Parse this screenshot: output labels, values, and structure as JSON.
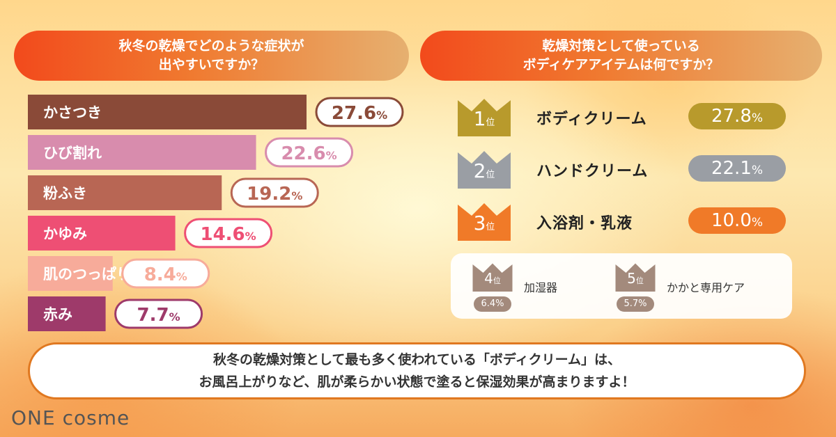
{
  "left_question": "秋冬の乾燥でどのような症状が\n出やすいですか？",
  "right_question": "乾燥対策として使っている\nボディケアアイテムは何ですか？",
  "chart_data": {
    "type": "bar",
    "orientation": "horizontal",
    "title": "秋冬の乾燥でどのような症状が\n出やすいですか？",
    "categories": [
      "かさつき",
      "ひび割れ",
      "粉ふき",
      "かゆみ",
      "肌のつっぱり",
      "赤み"
    ],
    "values": [
      27.6,
      22.6,
      19.2,
      14.6,
      8.4,
      7.7
    ],
    "value_labels": [
      "27.6",
      "22.6",
      "19.2",
      "14.6",
      "8.4",
      "7.7"
    ],
    "unit": "%",
    "colors": [
      "#8a4a38",
      "#d88cad",
      "#b86654",
      "#ee4f74",
      "#f7ab9a",
      "#9e3a6a"
    ],
    "xlim": [
      0,
      27.6
    ],
    "grid": false,
    "legend": "none"
  },
  "ranking": {
    "rank_suffix": "位",
    "top": [
      {
        "rank": "1",
        "label": "ボディクリーム",
        "value": "27.8",
        "unit": "%",
        "color": "#b89a2c"
      },
      {
        "rank": "2",
        "label": "ハンドクリーム",
        "value": "22.1",
        "unit": "%",
        "color": "#9a9ea4"
      },
      {
        "rank": "3",
        "label": "入浴剤・乳液",
        "value": "10.0",
        "unit": "%",
        "color": "#f07a28"
      }
    ],
    "minor": [
      {
        "rank": "4",
        "label": "加湿器",
        "value": "6.4%",
        "color": "#a38a7c"
      },
      {
        "rank": "5",
        "label": "かかと専用ケア",
        "value": "5.7%",
        "color": "#a38a7c"
      }
    ]
  },
  "summary": "秋冬の乾燥対策として最も多く使われている「ボディクリーム」は、\nお風呂上がりなど、肌が柔らかい状態で塗ると保湿効果が高まりますよ！",
  "logo": "ONE cosme"
}
